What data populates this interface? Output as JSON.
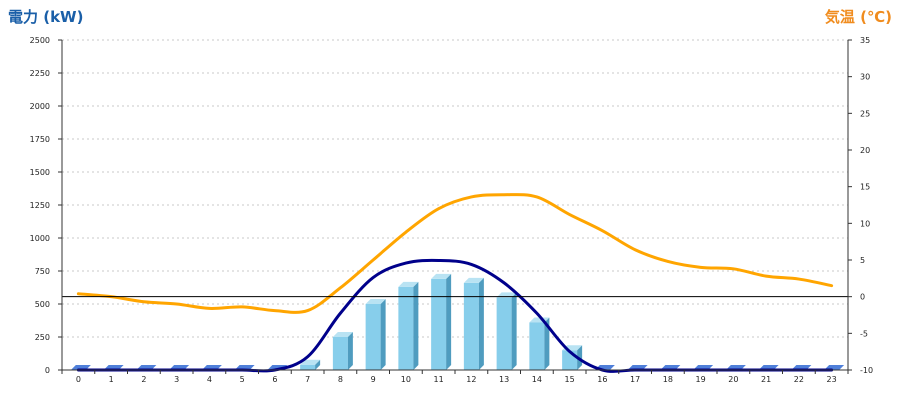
{
  "chart_data": {
    "type": "bar",
    "ylabel_left": "電力 (kW)",
    "ylabel_right": "気温 (℃)",
    "categories": [
      "0",
      "1",
      "2",
      "3",
      "4",
      "5",
      "6",
      "7",
      "8",
      "9",
      "10",
      "11",
      "12",
      "13",
      "14",
      "15",
      "16",
      "17",
      "18",
      "19",
      "20",
      "21",
      "22",
      "23"
    ],
    "y_left": {
      "lim": [
        0,
        2500
      ],
      "ticks": [
        "0",
        "250",
        "500",
        "750",
        "1000",
        "1250",
        "1500",
        "1750",
        "2000",
        "2250",
        "2500"
      ]
    },
    "y_right": {
      "lim": [
        -10,
        35
      ],
      "ticks": [
        "-10",
        "-5",
        "0",
        "5",
        "10",
        "15",
        "20",
        "25",
        "30",
        "35"
      ]
    },
    "grid": true,
    "series": [
      {
        "kind": "bar",
        "axis": "left",
        "color": "#87ceeb",
        "values": [
          0,
          0,
          0,
          0,
          0,
          0,
          0,
          40,
          250,
          500,
          630,
          690,
          660,
          550,
          360,
          150,
          0,
          0,
          0,
          0,
          0,
          0,
          0,
          0
        ]
      },
      {
        "kind": "line",
        "axis": "left",
        "color": "#00008b",
        "values": [
          0,
          0,
          0,
          0,
          0,
          0,
          0,
          100,
          430,
          700,
          810,
          830,
          800,
          660,
          430,
          140,
          0,
          0,
          0,
          0,
          0,
          0,
          0,
          0
        ]
      },
      {
        "kind": "line",
        "axis": "right",
        "color": "#ffa500",
        "values": [
          0.4,
          0.0,
          -0.7,
          -1.0,
          -1.6,
          -1.4,
          -1.9,
          -1.9,
          1.2,
          5.0,
          8.8,
          12.0,
          13.6,
          13.9,
          13.6,
          11.2,
          9.0,
          6.4,
          4.8,
          4.0,
          3.8,
          2.8,
          2.4,
          1.5
        ]
      }
    ]
  }
}
